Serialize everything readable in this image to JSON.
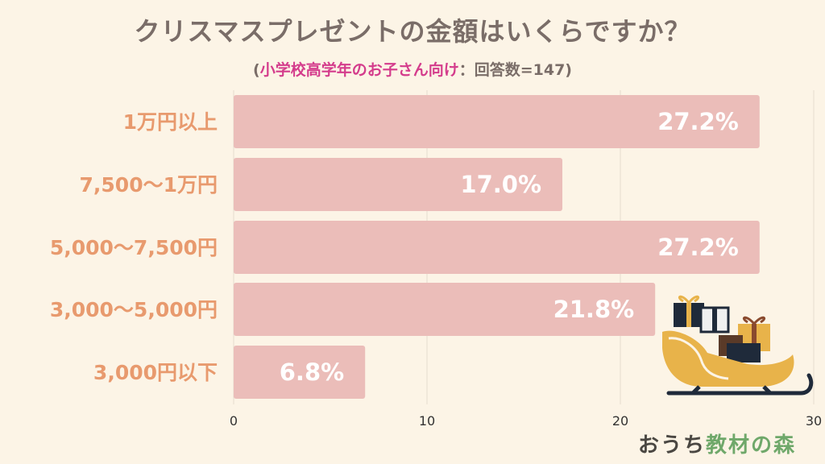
{
  "title": "クリスマスプレゼントの金額はいくらですか？",
  "subtitle": {
    "open": "(",
    "highlight": "小学校高学年のお子さん向け",
    "rest": "：回答数=147)"
  },
  "brand": {
    "prefix": "おうち",
    "suffix": "教材の森"
  },
  "colors": {
    "background": "#fcf4e6",
    "bar": "#ebbdb9",
    "category_label": "#e89a6e",
    "subtitle_highlight": "#d43c8c",
    "title": "#7a6d68"
  },
  "chart_data": {
    "type": "bar",
    "orientation": "horizontal",
    "categories": [
      "1万円以上",
      "7,500〜1万円",
      "5,000〜7,500円",
      "3,000〜5,000円",
      "3,000円以下"
    ],
    "values": [
      27.2,
      17.0,
      27.2,
      21.8,
      6.8
    ],
    "value_labels": [
      "27.2%",
      "17.0%",
      "27.2%",
      "21.8%",
      "6.8%"
    ],
    "xlim": [
      0,
      30
    ],
    "xticks": [
      0,
      10,
      20,
      30
    ],
    "grid": true,
    "xlabel": "",
    "ylabel": ""
  },
  "decoration": {
    "icon": "sleigh-with-gifts-icon"
  }
}
